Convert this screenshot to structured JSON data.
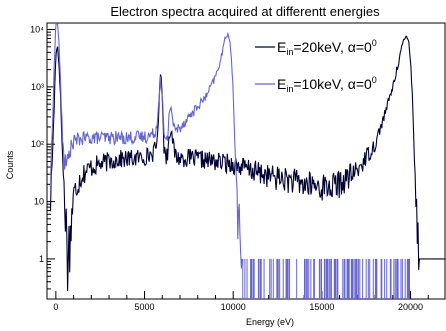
{
  "chart_data": {
    "type": "line",
    "title": "Electron spectra acquired at differentt energies",
    "xlabel": "Energy (eV)",
    "ylabel": "Counts",
    "xlim": [
      -500,
      22000
    ],
    "ylim": [
      0.2,
      13000
    ],
    "log_y": true,
    "grid": false,
    "legend_position": "top-right",
    "x_ticks": [
      0,
      5000,
      10000,
      15000,
      20000
    ],
    "x_tick_labels": [
      "0",
      "5000",
      "10000",
      "15000",
      "20000"
    ],
    "y_ticks": [
      1,
      10,
      100,
      1000,
      10000
    ],
    "y_tick_labels": [
      "1",
      "10",
      "10²",
      "10³",
      "10⁴"
    ],
    "series": [
      {
        "name": "E_in=20keV, α=0°",
        "legend": {
          "base": "E",
          "sub": "in",
          "rest": "=20keV, α=0",
          "sup": "0"
        },
        "color": "#000033",
        "x": [
          -300,
          -100,
          0,
          100,
          200,
          300,
          400,
          500,
          600,
          700,
          800,
          900,
          1000,
          1200,
          1500,
          2000,
          2500,
          3000,
          3500,
          4000,
          4500,
          5000,
          5500,
          5700,
          5800,
          5900,
          6000,
          6100,
          6200,
          6300,
          6400,
          6500,
          6600,
          6700,
          6800,
          7000,
          7500,
          8000,
          9000,
          10000,
          11000,
          12000,
          13000,
          14000,
          15000,
          15500,
          16000,
          17000,
          18000,
          18500,
          19000,
          19300,
          19500,
          19700,
          19800,
          19900,
          20000,
          20100,
          20200,
          20300,
          20500,
          21000,
          22000
        ],
        "values": [
          10,
          400,
          4000,
          5000,
          2000,
          300,
          40,
          10,
          3,
          1,
          2,
          6,
          12,
          20,
          30,
          40,
          45,
          50,
          55,
          55,
          57,
          60,
          70,
          100,
          400,
          1800,
          800,
          90,
          60,
          70,
          150,
          200,
          100,
          70,
          60,
          58,
          57,
          55,
          50,
          45,
          35,
          28,
          24,
          20,
          18,
          18,
          20,
          35,
          100,
          300,
          1000,
          2500,
          5000,
          7000,
          7500,
          6000,
          3000,
          800,
          100,
          10,
          1,
          1,
          1
        ]
      },
      {
        "name": "E_in=10keV, α=0°",
        "legend": {
          "base": "E",
          "sub": "in",
          "rest": "=10keV, α=0",
          "sup": "0"
        },
        "color": "#6666cc",
        "x": [
          -300,
          -100,
          0,
          100,
          200,
          300,
          400,
          500,
          600,
          700,
          800,
          1000,
          1200,
          1500,
          2000,
          2500,
          3000,
          4000,
          5000,
          5500,
          5700,
          5800,
          5900,
          6000,
          6100,
          6200,
          6300,
          6400,
          6500,
          6600,
          6700,
          6800,
          7000,
          7500,
          8000,
          8500,
          9000,
          9300,
          9500,
          9700,
          9800,
          9900,
          10000,
          10100,
          10200,
          10300,
          10500
        ],
        "values": [
          20,
          2000,
          13000,
          13000,
          4000,
          500,
          100,
          50,
          40,
          60,
          80,
          110,
          120,
          125,
          130,
          130,
          130,
          130,
          135,
          150,
          200,
          600,
          1500,
          700,
          150,
          100,
          130,
          400,
          450,
          250,
          170,
          180,
          200,
          300,
          450,
          700,
          1500,
          3000,
          6000,
          9000,
          7000,
          3000,
          800,
          100,
          15,
          3,
          1
        ]
      }
    ]
  }
}
